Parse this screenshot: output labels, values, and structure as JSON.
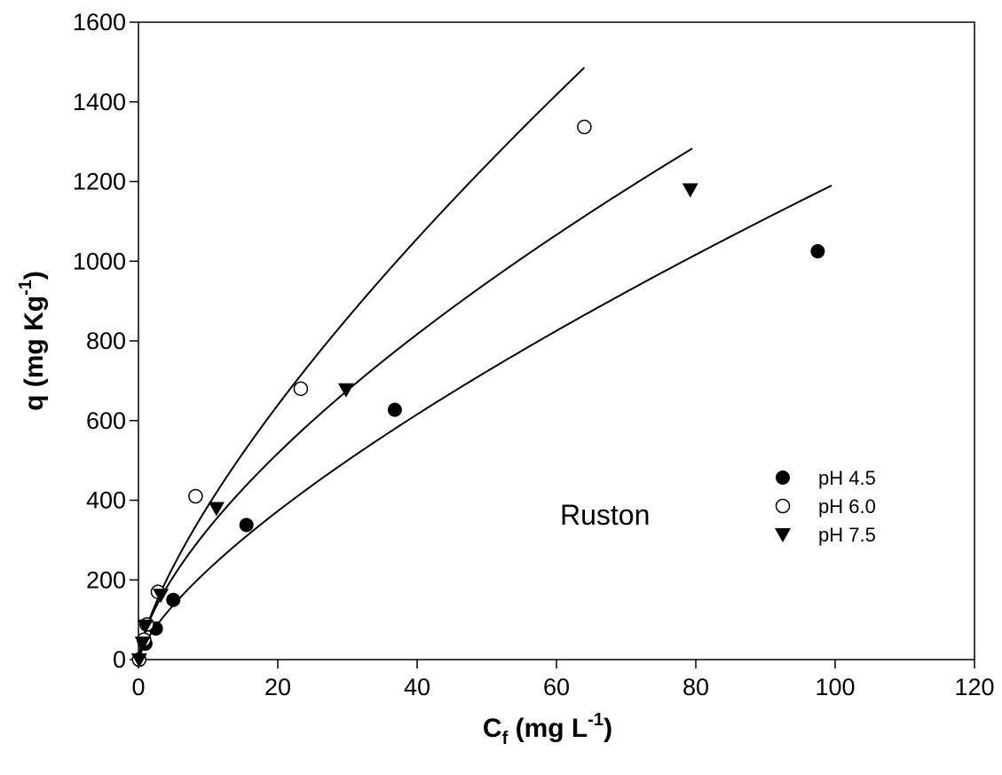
{
  "chart_data": {
    "type": "scatter",
    "title": "",
    "xlabel": {
      "main": "C",
      "sub": "f",
      "rest": " (mg L",
      "sup": "-1",
      "end": ")"
    },
    "ylabel": {
      "main": "q (mg Kg",
      "sup": "-1",
      "end": ")"
    },
    "xlim": [
      0,
      120
    ],
    "ylim": [
      0,
      1600
    ],
    "xticks": [
      0,
      20,
      40,
      60,
      80,
      100,
      120
    ],
    "yticks": [
      0,
      200,
      400,
      600,
      800,
      1000,
      1200,
      1400,
      1600
    ],
    "grid": false,
    "legend_position": "right",
    "annotation": "Ruston",
    "series": [
      {
        "name": "pH 4.5",
        "marker": "filled-circle",
        "points": [
          [
            0.1,
            0
          ],
          [
            1.0,
            40
          ],
          [
            2.5,
            78
          ],
          [
            5.0,
            150
          ],
          [
            15.5,
            338
          ],
          [
            36.8,
            627
          ],
          [
            97.5,
            1025
          ]
        ],
        "fit_range": [
          0,
          99.5
        ]
      },
      {
        "name": "pH 6.0",
        "marker": "open-circle",
        "points": [
          [
            0.1,
            0
          ],
          [
            0.8,
            50
          ],
          [
            1.2,
            88
          ],
          [
            2.8,
            170
          ],
          [
            8.2,
            410
          ],
          [
            23.3,
            680
          ],
          [
            64.0,
            1337
          ]
        ],
        "fit_range": [
          0,
          64
        ]
      },
      {
        "name": "pH 7.5",
        "marker": "filled-triangle-down",
        "points": [
          [
            0.1,
            0
          ],
          [
            0.6,
            42
          ],
          [
            1.0,
            85
          ],
          [
            3.2,
            162
          ],
          [
            11.2,
            380
          ],
          [
            29.8,
            678
          ],
          [
            79.2,
            1180
          ]
        ],
        "fit_range": [
          0,
          79.5
        ]
      }
    ]
  }
}
